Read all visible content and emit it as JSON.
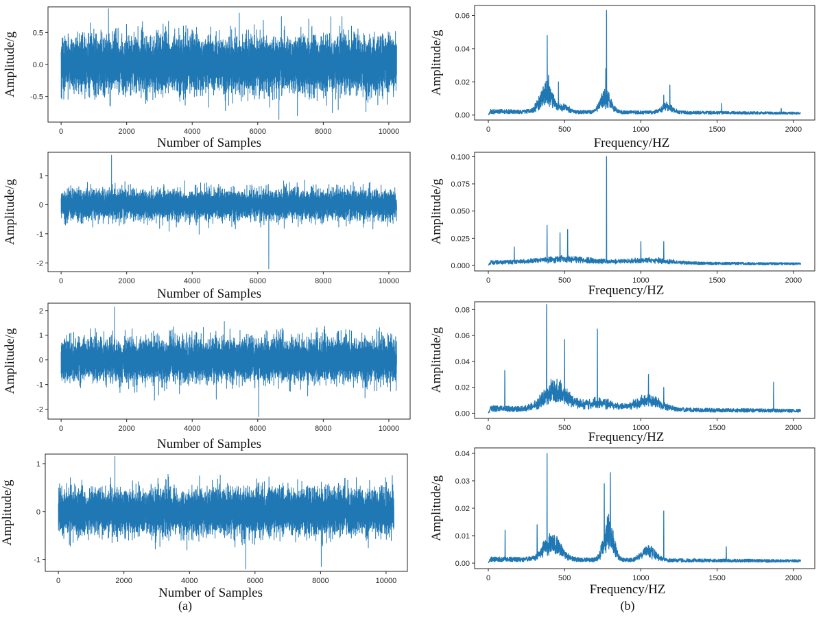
{
  "figure": {
    "captions": [
      "(a)",
      "(b)"
    ],
    "series_color": "#1f77b4"
  },
  "chart_data": [
    {
      "id": "a1",
      "type": "line",
      "domain": "time",
      "xlabel": "Number of Samples",
      "ylabel": "Amplitude/g",
      "xlim": [
        -400,
        10650
      ],
      "ylim": [
        -0.9,
        0.9
      ],
      "xticks": [
        0,
        2000,
        4000,
        6000,
        8000,
        10000
      ],
      "yticks": [
        -0.5,
        0.0,
        0.5
      ],
      "ytick_labels": [
        "-0.5",
        "0.0",
        "0.5"
      ],
      "n_samples": 10240,
      "typical_amplitude": 0.55,
      "max": 0.87,
      "min": -0.86,
      "series": [
        {
          "color": "#1f77b4"
        }
      ]
    },
    {
      "id": "a2",
      "type": "line",
      "domain": "time",
      "xlabel": "Number of Samples",
      "ylabel": "Amplitude/g",
      "xlim": [
        -400,
        10650
      ],
      "ylim": [
        -2.3,
        1.8
      ],
      "xticks": [
        0,
        2000,
        4000,
        6000,
        8000,
        10000
      ],
      "yticks": [
        -2,
        -1,
        0,
        1
      ],
      "ytick_labels": [
        "-2",
        "-1",
        "0",
        "1"
      ],
      "n_samples": 10240,
      "typical_amplitude": 0.65,
      "max": 1.7,
      "min": -2.2,
      "series": [
        {
          "color": "#1f77b4"
        }
      ]
    },
    {
      "id": "a3",
      "type": "line",
      "domain": "time",
      "xlabel": "Number of Samples",
      "ylabel": "Amplitude/g",
      "xlim": [
        -400,
        10650
      ],
      "ylim": [
        -2.4,
        2.3
      ],
      "xticks": [
        0,
        2000,
        4000,
        6000,
        8000,
        10000
      ],
      "yticks": [
        -2,
        -1,
        0,
        1,
        2
      ],
      "ytick_labels": [
        "-2",
        "-1",
        "0",
        "1",
        "2"
      ],
      "n_samples": 10240,
      "typical_amplitude": 1.1,
      "max": 2.15,
      "min": -2.3,
      "series": [
        {
          "color": "#1f77b4"
        }
      ]
    },
    {
      "id": "a4",
      "type": "line",
      "domain": "time",
      "xlabel": "Number of Samples",
      "ylabel": "Amplitude/g",
      "xlim": [
        -400,
        10650
      ],
      "ylim": [
        -1.25,
        1.2
      ],
      "xticks": [
        0,
        2000,
        4000,
        6000,
        8000,
        10000
      ],
      "yticks": [
        -1,
        0,
        1
      ],
      "ytick_labels": [
        "-1",
        "0",
        "1"
      ],
      "n_samples": 10240,
      "typical_amplitude": 0.6,
      "max": 1.15,
      "min": -1.2,
      "series": [
        {
          "color": "#1f77b4"
        }
      ]
    },
    {
      "id": "b1",
      "type": "line",
      "domain": "freq",
      "xlabel": "Frequency/HZ",
      "ylabel": "Amplitude/g",
      "xlim": [
        -90,
        2140
      ],
      "ylim": [
        -0.003,
        0.066
      ],
      "xticks": [
        0,
        500,
        1000,
        1500,
        2000
      ],
      "yticks": [
        0.0,
        0.02,
        0.04,
        0.06
      ],
      "ytick_labels": [
        "0.00",
        "0.02",
        "0.04",
        "0.06"
      ],
      "n_points": 2048,
      "floor": 0.003,
      "bands": [
        [
          380,
          60,
          0.013
        ],
        [
          770,
          50,
          0.01
        ],
        [
          1170,
          50,
          0.004
        ],
        [
          500,
          40,
          0.003
        ]
      ],
      "peaks": [
        [
          386,
          0.048
        ],
        [
          775,
          0.063
        ],
        [
          770,
          0.028
        ],
        [
          395,
          0.024
        ],
        [
          460,
          0.02
        ],
        [
          1190,
          0.018
        ],
        [
          1150,
          0.012
        ],
        [
          1530,
          0.007
        ],
        [
          1920,
          0.004
        ]
      ],
      "series": [
        {
          "color": "#1f77b4"
        }
      ]
    },
    {
      "id": "b2",
      "type": "line",
      "domain": "freq",
      "xlabel": "Frequency/HZ",
      "ylabel": "Amplitude/g",
      "xlim": [
        -90,
        2140
      ],
      "ylim": [
        -0.005,
        0.104
      ],
      "xticks": [
        0,
        500,
        1000,
        1500,
        2000
      ],
      "yticks": [
        0.0,
        0.025,
        0.05,
        0.075,
        0.1
      ],
      "ytick_labels": [
        "0.000",
        "0.025",
        "0.050",
        "0.075",
        "0.100"
      ],
      "n_points": 2048,
      "floor": 0.004,
      "bands": [
        [
          500,
          250,
          0.004
        ],
        [
          1050,
          200,
          0.003
        ]
      ],
      "peaks": [
        [
          775,
          0.1
        ],
        [
          385,
          0.037
        ],
        [
          520,
          0.033
        ],
        [
          470,
          0.03
        ],
        [
          1000,
          0.022
        ],
        [
          1150,
          0.022
        ],
        [
          170,
          0.017
        ]
      ],
      "series": [
        {
          "color": "#1f77b4"
        }
      ]
    },
    {
      "id": "b3",
      "type": "line",
      "domain": "freq",
      "xlabel": "Frequency/HZ",
      "ylabel": "Amplitude/g",
      "xlim": [
        -90,
        2140
      ],
      "ylim": [
        -0.004,
        0.086
      ],
      "xticks": [
        0,
        500,
        1000,
        1500,
        2000
      ],
      "yticks": [
        0.0,
        0.02,
        0.04,
        0.06,
        0.08
      ],
      "ytick_labels": [
        "0.00",
        "0.02",
        "0.04",
        "0.06",
        "0.08"
      ],
      "n_points": 2048,
      "floor": 0.005,
      "bands": [
        [
          440,
          110,
          0.016
        ],
        [
          1050,
          120,
          0.008
        ],
        [
          720,
          150,
          0.006
        ]
      ],
      "peaks": [
        [
          382,
          0.084
        ],
        [
          500,
          0.057
        ],
        [
          715,
          0.065
        ],
        [
          108,
          0.033
        ],
        [
          1050,
          0.03
        ],
        [
          1870,
          0.024
        ],
        [
          1150,
          0.02
        ]
      ],
      "series": [
        {
          "color": "#1f77b4"
        }
      ]
    },
    {
      "id": "b4",
      "type": "line",
      "domain": "freq",
      "xlabel": "Frequency/HZ",
      "ylabel": "Amplitude/g",
      "xlim": [
        -90,
        2140
      ],
      "ylim": [
        -0.002,
        0.042
      ],
      "xticks": [
        0,
        500,
        1000,
        1500,
        2000
      ],
      "yticks": [
        0.0,
        0.01,
        0.02,
        0.03,
        0.04
      ],
      "ytick_labels": [
        "0.00",
        "0.01",
        "0.02",
        "0.03",
        "0.04"
      ],
      "n_points": 2048,
      "floor": 0.002,
      "bands": [
        [
          420,
          80,
          0.007
        ],
        [
          790,
          45,
          0.012
        ],
        [
          1050,
          60,
          0.004
        ]
      ],
      "peaks": [
        [
          385,
          0.04
        ],
        [
          800,
          0.033
        ],
        [
          760,
          0.029
        ],
        [
          1150,
          0.019
        ],
        [
          320,
          0.014
        ],
        [
          110,
          0.012
        ],
        [
          1560,
          0.006
        ]
      ],
      "series": [
        {
          "color": "#1f77b4"
        }
      ]
    }
  ]
}
